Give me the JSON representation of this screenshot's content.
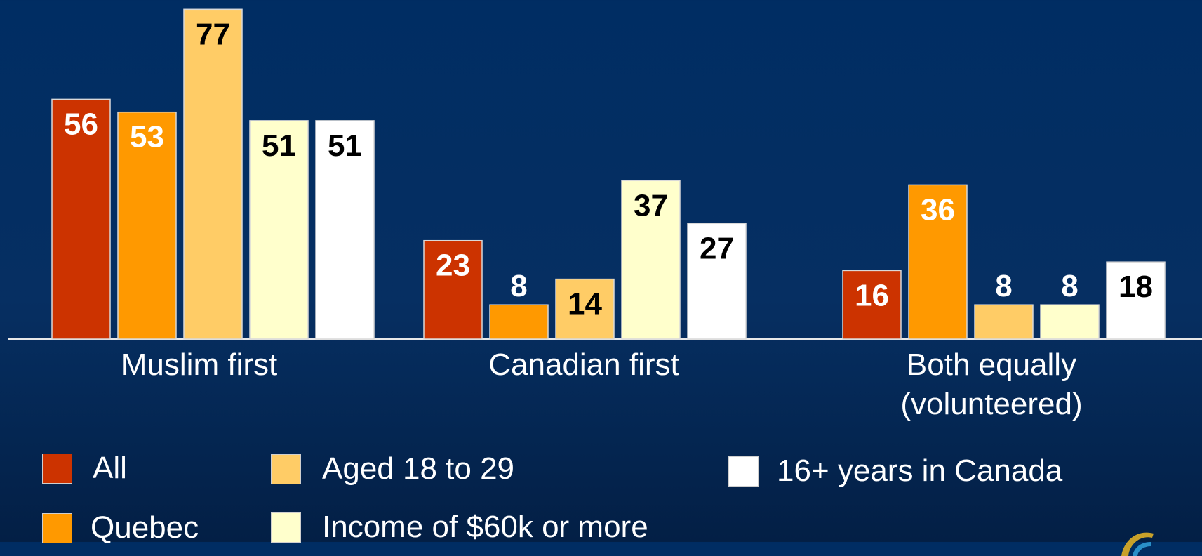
{
  "colors": {
    "background": "#002d63",
    "axis": "#e8e8e8",
    "series": [
      "#cc3300",
      "#ff9900",
      "#ffcc66",
      "#ffffcc",
      "#ffffff"
    ],
    "label_light": "#ffffff",
    "label_dark": "#000000"
  },
  "chart_data": {
    "type": "bar",
    "categories": [
      "Muslim first",
      "Canadian first",
      "Both equally (volunteered)"
    ],
    "series": [
      {
        "name": "All",
        "values": [
          56,
          23,
          16
        ]
      },
      {
        "name": "Quebec",
        "values": [
          53,
          8,
          36
        ]
      },
      {
        "name": "Aged 18 to 29",
        "values": [
          77,
          14,
          8
        ]
      },
      {
        "name": "Income of $60k or more",
        "values": [
          51,
          37,
          8
        ]
      },
      {
        "name": "16+ years in Canada",
        "values": [
          51,
          27,
          18
        ]
      }
    ],
    "ylim": [
      0,
      77
    ],
    "grid": false,
    "legend": "bottom",
    "data_labels": true
  },
  "legend": {
    "items": [
      {
        "label": "All"
      },
      {
        "label": "Quebec"
      },
      {
        "label": "Aged 18 to 29"
      },
      {
        "label": "Income of $60k or more"
      },
      {
        "label": "16+ years in Canada"
      }
    ]
  },
  "icons": {
    "logo": "partial-logo-icon"
  }
}
